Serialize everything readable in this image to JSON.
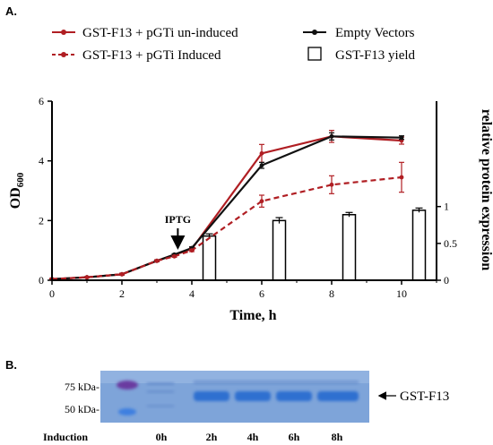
{
  "panels": {
    "a_label": "A.",
    "b_label": "B."
  },
  "legend": {
    "uninduced": "GST-F13 + pGTi un-induced",
    "induced": "GST-F13 + pGTi Induced",
    "empty": "Empty Vectors",
    "yield": "GST-F13 yield"
  },
  "colors": {
    "uninduced": "#b01e23",
    "induced": "#b01e23",
    "empty": "#111111",
    "yield_fill": "#ffffff",
    "gel_bg": "#7ea4d9",
    "band": "#2f6fd0",
    "ladder": "#6a3aa0"
  },
  "chart_data": {
    "type": "line",
    "xlabel": "Time, h",
    "ylabel": "OD",
    "ylabel_sub": "600",
    "y2label": "relative protein expression",
    "xlim": [
      0,
      11
    ],
    "ylim": [
      0,
      6
    ],
    "y2lim": [
      0,
      2.43
    ],
    "xticks": [
      0,
      2,
      4,
      6,
      8,
      10
    ],
    "yticks": [
      0,
      2,
      4,
      6
    ],
    "y2ticks": [
      0,
      0.5,
      1
    ],
    "y2ticklabels": [
      "0",
      "0.5",
      "1"
    ],
    "annotation": {
      "text": "IPTG",
      "x": 3.6,
      "y": 0.9
    },
    "series": [
      {
        "name": "GST-F13 + pGTi un-induced",
        "style": "solid",
        "color": "#b01e23",
        "axis": "left",
        "x": [
          0,
          1,
          2,
          3,
          3.5,
          4,
          6,
          8,
          10
        ],
        "y": [
          0.04,
          0.1,
          0.2,
          0.65,
          0.85,
          1.05,
          4.25,
          4.82,
          4.68
        ],
        "err": [
          0.02,
          0.02,
          0.03,
          0.03,
          0.03,
          0.04,
          0.3,
          0.2,
          0.12
        ]
      },
      {
        "name": "Empty Vectors",
        "style": "solid",
        "color": "#111111",
        "axis": "left",
        "x": [
          0,
          1,
          2,
          3,
          3.5,
          4,
          6,
          8,
          10
        ],
        "y": [
          0.04,
          0.1,
          0.2,
          0.65,
          0.86,
          1.08,
          3.85,
          4.82,
          4.78
        ],
        "err": [
          0.02,
          0.02,
          0.03,
          0.03,
          0.03,
          0.04,
          0.1,
          0.12,
          0.06
        ]
      },
      {
        "name": "GST-F13 + pGTi Induced",
        "style": "dashed",
        "color": "#b01e23",
        "axis": "left",
        "x": [
          0,
          1,
          2,
          3,
          3.5,
          4,
          6,
          8,
          10
        ],
        "y": [
          0.04,
          0.1,
          0.2,
          0.65,
          0.8,
          1.0,
          2.65,
          3.2,
          3.45
        ],
        "err": [
          0.02,
          0.02,
          0.03,
          0.03,
          0.03,
          0.04,
          0.2,
          0.3,
          0.5
        ]
      }
    ],
    "bars": {
      "name": "GST-F13 yield",
      "axis": "right",
      "x": [
        4.5,
        6.5,
        8.5,
        10.5
      ],
      "y": [
        0.6,
        0.81,
        0.89,
        0.95
      ],
      "err": [
        0.03,
        0.04,
        0.03,
        0.03
      ]
    }
  },
  "gel": {
    "markers": [
      "75 kDa-",
      "50 kDa-"
    ],
    "arrow_label": "GST-F13",
    "row_label": "Induction",
    "lanes": [
      "0h",
      "2h",
      "4h",
      "6h",
      "8h"
    ]
  }
}
